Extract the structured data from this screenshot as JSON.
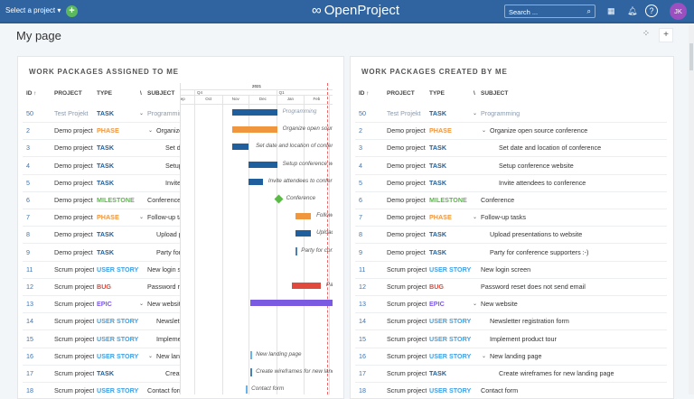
{
  "header": {
    "project_select": "Select a project ▾",
    "logo": "OpenProject",
    "search_placeholder": "Search ...",
    "avatar": "JK",
    "icons": [
      "plus-icon",
      "search-icon",
      "grid-icon",
      "bell-icon",
      "help-icon"
    ]
  },
  "page": {
    "title": "My page"
  },
  "widgets": {
    "assigned_title": "WORK PACKAGES ASSIGNED TO ME",
    "created_title": "WORK PACKAGES CREATED BY ME"
  },
  "columns": {
    "id": "ID",
    "project": "PROJECT",
    "type": "TYPE",
    "subject": "SUBJECT"
  },
  "type_colors": {
    "TASK": "#1f5f9e",
    "PHASE": "#f0963f",
    "MILESTONE": "#5ab947",
    "USER STORY": "#3fa1e6",
    "BUG": "#e0493c",
    "EPIC": "#7a5ae0"
  },
  "gantt": {
    "year": "2021",
    "quarters": [
      "Q3",
      "Q4",
      "Q1"
    ],
    "months": [
      "Sep",
      "Oct",
      "Nov",
      "Dec",
      "Jan",
      "Feb"
    ],
    "today": "2021-02-26"
  },
  "rows": [
    {
      "id": "50",
      "project": "Test Projekt",
      "type": "TASK",
      "subject": "Programming",
      "level": 0,
      "expand": true,
      "muted": true,
      "start": "2020-11-12",
      "end": "2020-12-31"
    },
    {
      "id": "2",
      "project": "Demo project",
      "type": "PHASE",
      "subject": "Organize open source conference",
      "level": 1,
      "expand": true,
      "start": "2020-11-12",
      "end": "2020-12-31"
    },
    {
      "id": "3",
      "project": "Demo project",
      "type": "TASK",
      "subject": "Set date and location of conference",
      "level": 2,
      "start": "2020-11-12",
      "end": "2020-11-29"
    },
    {
      "id": "4",
      "project": "Demo project",
      "type": "TASK",
      "subject": "Setup conference website",
      "level": 2,
      "start": "2020-11-30",
      "end": "2020-12-31"
    },
    {
      "id": "5",
      "project": "Demo project",
      "type": "TASK",
      "subject": "Invite attendees to conference",
      "level": 2,
      "start": "2020-11-30",
      "end": "2020-12-15"
    },
    {
      "id": "6",
      "project": "Demo project",
      "type": "MILESTONE",
      "subject": "Conference",
      "level": 0,
      "start": "2021-01-03",
      "end": "2021-01-03"
    },
    {
      "id": "7",
      "project": "Demo project",
      "type": "PHASE",
      "subject": "Follow-up tasks",
      "level": 0,
      "expand": true,
      "start": "2021-01-22",
      "end": "2021-02-07"
    },
    {
      "id": "8",
      "project": "Demo project",
      "type": "TASK",
      "subject": "Upload presentations to website",
      "level": 1,
      "start": "2021-01-22",
      "end": "2021-02-07"
    },
    {
      "id": "9",
      "project": "Demo project",
      "type": "TASK",
      "subject": "Party for conference supporters :-)",
      "level": 1,
      "start": "2021-01-22",
      "end": "2021-01-22"
    },
    {
      "id": "11",
      "project": "Scrum project",
      "type": "USER STORY",
      "subject": "New login screen",
      "level": 0
    },
    {
      "id": "12",
      "project": "Scrum project",
      "type": "BUG",
      "subject": "Password reset does not send email",
      "level": 0,
      "start": "2021-01-18",
      "end": "2021-02-18"
    },
    {
      "id": "13",
      "project": "Scrum project",
      "type": "EPIC",
      "subject": "New website",
      "level": 0,
      "expand": true,
      "start": "2020-12-02",
      "end": "2021-03-10"
    },
    {
      "id": "14",
      "project": "Scrum project",
      "type": "USER STORY",
      "subject": "Newsletter registration form",
      "level": 1
    },
    {
      "id": "15",
      "project": "Scrum project",
      "type": "USER STORY",
      "subject": "Implement product tour",
      "level": 1
    },
    {
      "id": "16",
      "project": "Scrum project",
      "type": "USER STORY",
      "subject": "New landing page",
      "level": 1,
      "expand": true,
      "start": "2020-12-02",
      "end": "2020-12-02"
    },
    {
      "id": "17",
      "project": "Scrum project",
      "type": "TASK",
      "subject": "Create wireframes for new landing page",
      "level": 2,
      "start": "2020-12-02",
      "end": "2020-12-02"
    },
    {
      "id": "18",
      "project": "Scrum project",
      "type": "USER STORY",
      "subject": "Contact form",
      "level": 0,
      "start": "2020-11-27",
      "end": "2020-11-27"
    }
  ]
}
